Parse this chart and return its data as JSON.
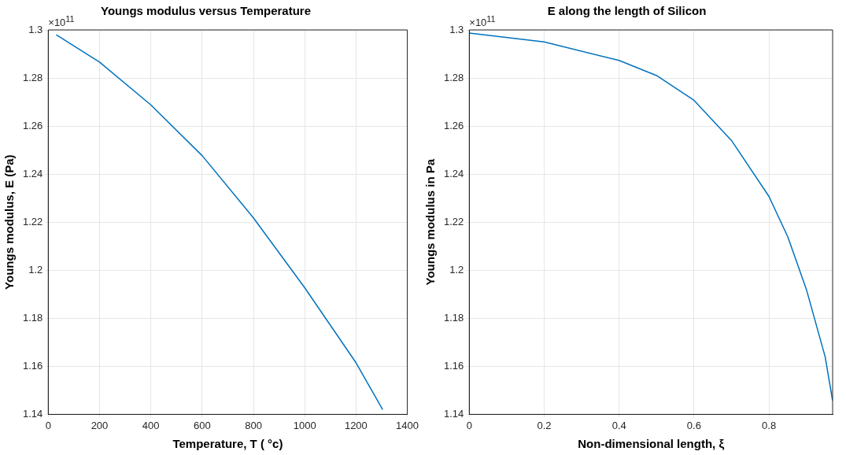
{
  "chart_data": [
    {
      "type": "line",
      "title": "Youngs modulus versus Temperature",
      "xlabel": "Temperature, T ( °c)",
      "ylabel": "Youngs modulus, E (Pa)",
      "annotations": [
        "×10$^{11}$"
      ],
      "series": [
        {
          "color": "#0072bd",
          "x": [
            31,
            200,
            400,
            600,
            800,
            1000,
            1200,
            1304
          ],
          "values": [
            1.298,
            1.2866,
            1.2688,
            1.2477,
            1.2218,
            1.1927,
            1.1615,
            1.142
          ]
        }
      ],
      "xlim": [
        0,
        1400
      ],
      "xticks": [
        0,
        200,
        400,
        600,
        800,
        1000,
        1200,
        1400
      ],
      "ylim": [
        1.14,
        1.3
      ],
      "yticks": [
        1.14,
        1.16,
        1.18,
        1.2,
        1.22,
        1.24,
        1.26,
        1.28,
        1.3
      ],
      "grid": true
    },
    {
      "type": "line",
      "title": "E along the length of Silicon",
      "xlabel": "Non-dimensional length, ξ",
      "ylabel": "Youngs modulus in Pa",
      "annotations": [
        "×10$^{11}$"
      ],
      "series": [
        {
          "color": "#0072bd",
          "x": [
            0,
            0.2,
            0.4,
            0.5,
            0.6,
            0.7,
            0.8,
            0.85,
            0.9,
            0.95,
            0.97
          ],
          "values": [
            1.2987,
            1.295,
            1.2873,
            1.281,
            1.2707,
            1.254,
            1.2307,
            1.214,
            1.192,
            1.164,
            1.1457
          ]
        }
      ],
      "xlim": [
        0,
        0.97
      ],
      "xticks": [
        0,
        0.2,
        0.4,
        0.6,
        0.8
      ],
      "ylim": [
        1.14,
        1.3
      ],
      "yticks": [
        1.14,
        1.16,
        1.18,
        1.2,
        1.22,
        1.24,
        1.26,
        1.28,
        1.3
      ],
      "grid": true
    }
  ]
}
